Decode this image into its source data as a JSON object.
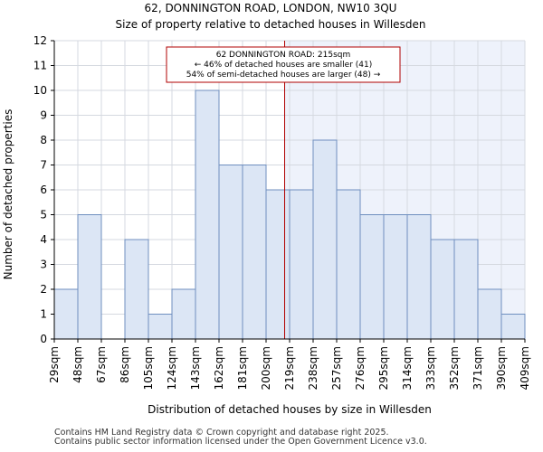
{
  "chart_data": {
    "type": "bar",
    "title": "62, DONNINGTON ROAD, LONDON, NW10 3QU",
    "subtitle": "Size of property relative to detached houses in Willesden",
    "xlabel": "Distribution of detached houses by size in Willesden",
    "ylabel": "Number of detached properties",
    "bin_edges": [
      "29sqm",
      "48sqm",
      "67sqm",
      "86sqm",
      "105sqm",
      "124sqm",
      "143sqm",
      "162sqm",
      "181sqm",
      "200sqm",
      "219sqm",
      "238sqm",
      "257sqm",
      "276sqm",
      "295sqm",
      "314sqm",
      "333sqm",
      "352sqm",
      "371sqm",
      "390sqm",
      "409sqm"
    ],
    "values": [
      2,
      5,
      0,
      4,
      1,
      2,
      10,
      7,
      7,
      6,
      6,
      8,
      6,
      5,
      5,
      5,
      4,
      4,
      2,
      1
    ],
    "ylim": [
      0,
      12
    ],
    "yticks": [
      0,
      1,
      2,
      3,
      4,
      5,
      6,
      7,
      8,
      9,
      10,
      11,
      12
    ],
    "grid": true,
    "marker": {
      "value_sqm": 215,
      "annotation_lines": [
        "62 DONNINGTON ROAD: 215sqm",
        "← 46% of detached houses are smaller (41)",
        "54% of semi-detached houses are larger (48) →"
      ],
      "color": "#b00000"
    },
    "colors": {
      "bar_fill": "#dce6f5",
      "bar_stroke": "#6f8fbf",
      "highlight_bg": "#eef2fb",
      "grid": "#d5d9e0"
    }
  },
  "footer": {
    "line1": "Contains HM Land Registry data © Crown copyright and database right 2025.",
    "line2": "Contains public sector information licensed under the Open Government Licence v3.0."
  }
}
